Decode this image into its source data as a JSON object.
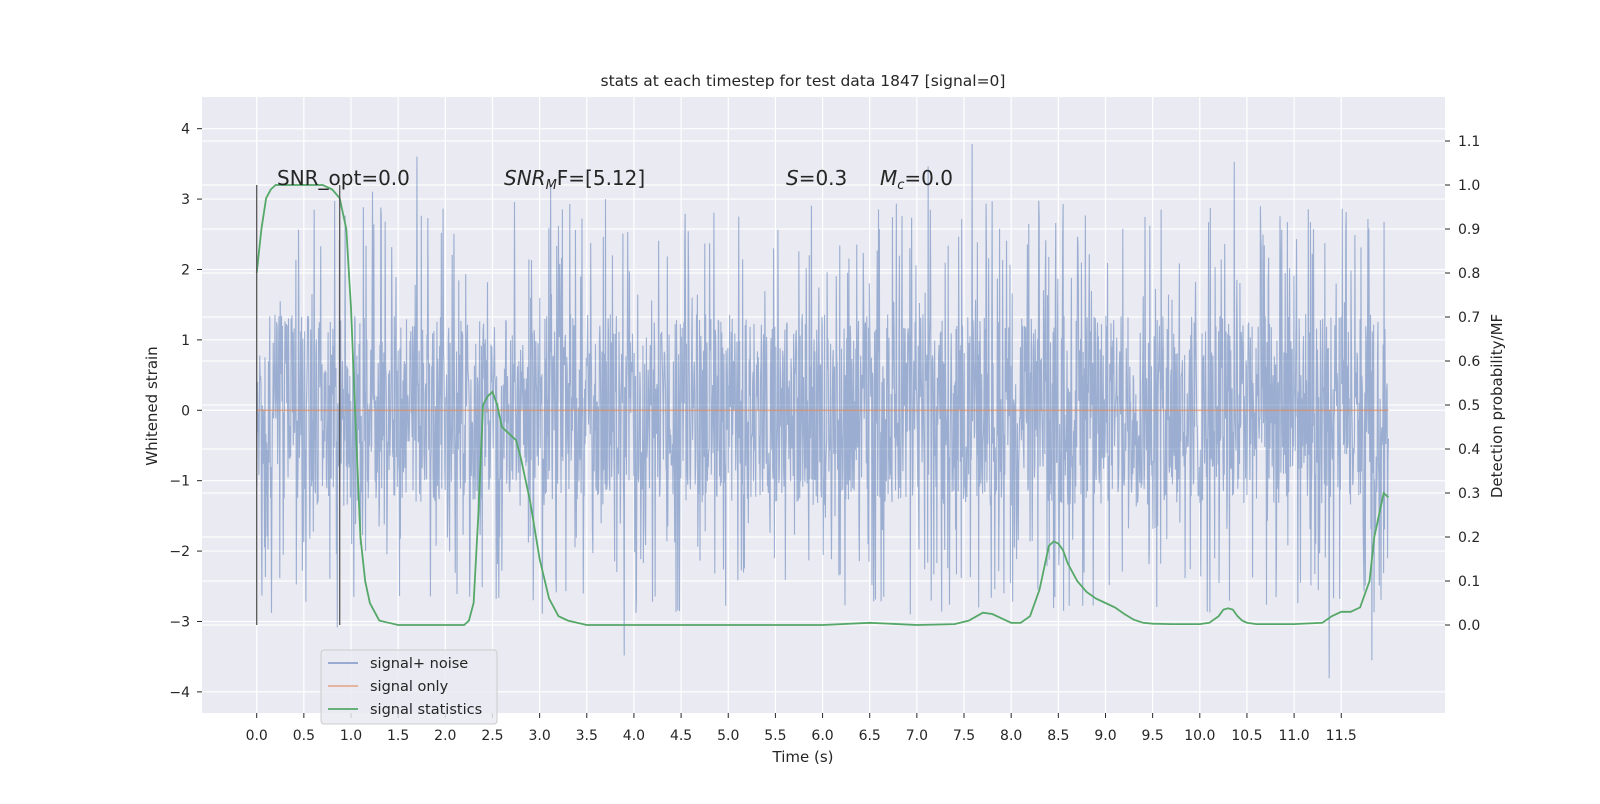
{
  "chart_data": {
    "type": "line",
    "title": "stats at each timestep for test data 1847 [signal=0]",
    "xlabel": "Time (s)",
    "ylabel_left": "Whitened strain",
    "ylabel_right": "Detection probability/MF",
    "xlim": [
      -0.58,
      12.6
    ],
    "ylim_left": [
      -4.3,
      4.45
    ],
    "ylim_right": [
      -0.2,
      1.2
    ],
    "x_ticks": [
      0.0,
      0.5,
      1.0,
      1.5,
      2.0,
      2.5,
      3.0,
      3.5,
      4.0,
      4.5,
      5.0,
      5.5,
      6.0,
      6.5,
      7.0,
      7.5,
      8.0,
      8.5,
      9.0,
      9.5,
      10.0,
      10.5,
      11.0,
      11.5
    ],
    "x_tick_labels": [
      "0.0",
      "0.5",
      "1.0",
      "1.5",
      "2.0",
      "2.5",
      "3.0",
      "3.5",
      "4.0",
      "4.5",
      "5.0",
      "5.5",
      "6.0",
      "6.5",
      "7.0",
      "7.5",
      "8.0",
      "8.5",
      "9.0",
      "9.5",
      "10.0",
      "10.5",
      "11.0",
      "11.5"
    ],
    "y_left_ticks": [
      -4,
      -3,
      -2,
      -1,
      0,
      1,
      2,
      3,
      4
    ],
    "y_left_tick_labels": [
      "−4",
      "−3",
      "−2",
      "−1",
      "0",
      "1",
      "2",
      "3",
      "4"
    ],
    "y_right_ticks": [
      0.0,
      0.1,
      0.2,
      0.3,
      0.4,
      0.5,
      0.6,
      0.7,
      0.8,
      0.9,
      1.0,
      1.1
    ],
    "y_right_tick_labels": [
      "0.0",
      "0.1",
      "0.2",
      "0.3",
      "0.4",
      "0.5",
      "0.6",
      "0.7",
      "0.8",
      "0.9",
      "1.0",
      "1.1"
    ],
    "grid": true,
    "legend_placement": "lower-left",
    "annotations": {
      "snr_opt": "SNR_opt=0.0",
      "snr_mf_base": "SNR",
      "snr_mf_sub": "M",
      "snr_mf_tail": "F=[5.12]",
      "s_name": "S",
      "s_value": "=0.3",
      "mc_base": "M",
      "mc_sub": "c",
      "mc_value": "=0.0"
    },
    "markers": {
      "x": [
        0.0,
        0.88
      ],
      "y_range": [
        -3.05,
        3.2
      ]
    },
    "series": [
      {
        "name": "signal+ noise",
        "axis": "left",
        "color": "#4c72b0",
        "kind": "noise",
        "x_range": [
          0.0,
          12.0
        ],
        "core_amplitude": 1.3,
        "max_value": 4.1,
        "min_value": -3.9
      },
      {
        "name": "signal only",
        "axis": "left",
        "color": "#dd8452",
        "kind": "flat",
        "x_range": [
          0.0,
          12.0
        ],
        "value": 0.0
      },
      {
        "name": "signal statistics",
        "axis": "right",
        "color": "#55a868",
        "kind": "line",
        "x": [
          0.0,
          0.05,
          0.1,
          0.15,
          0.2,
          0.3,
          0.5,
          0.7,
          0.8,
          0.88,
          0.95,
          1.0,
          1.05,
          1.1,
          1.15,
          1.2,
          1.3,
          1.5,
          1.8,
          2.0,
          2.1,
          2.2,
          2.25,
          2.3,
          2.35,
          2.4,
          2.45,
          2.5,
          2.55,
          2.6,
          2.7,
          2.75,
          2.8,
          2.9,
          3.0,
          3.1,
          3.2,
          3.3,
          3.5,
          4.0,
          4.5,
          5.0,
          5.5,
          6.0,
          6.5,
          7.0,
          7.4,
          7.55,
          7.7,
          7.8,
          7.9,
          8.0,
          8.1,
          8.2,
          8.3,
          8.4,
          8.45,
          8.5,
          8.55,
          8.6,
          8.7,
          8.8,
          8.9,
          9.0,
          9.1,
          9.2,
          9.3,
          9.4,
          9.5,
          9.7,
          10.0,
          10.1,
          10.2,
          10.25,
          10.3,
          10.35,
          10.4,
          10.45,
          10.5,
          10.6,
          11.0,
          11.3,
          11.4,
          11.5,
          11.6,
          11.7,
          11.8,
          11.85,
          11.9,
          11.95,
          12.0
        ],
        "y": [
          0.8,
          0.9,
          0.97,
          0.99,
          1.0,
          1.0,
          1.0,
          1.0,
          0.99,
          0.97,
          0.9,
          0.72,
          0.45,
          0.2,
          0.1,
          0.05,
          0.01,
          0.0,
          0.0,
          0.0,
          0.0,
          0.0,
          0.01,
          0.05,
          0.25,
          0.5,
          0.52,
          0.53,
          0.5,
          0.45,
          0.43,
          0.42,
          0.38,
          0.28,
          0.15,
          0.06,
          0.02,
          0.01,
          0.0,
          0.0,
          0.0,
          0.0,
          0.0,
          0.0,
          0.005,
          0.0,
          0.002,
          0.01,
          0.028,
          0.025,
          0.015,
          0.005,
          0.005,
          0.02,
          0.08,
          0.18,
          0.19,
          0.185,
          0.17,
          0.14,
          0.1,
          0.075,
          0.06,
          0.05,
          0.04,
          0.025,
          0.012,
          0.005,
          0.003,
          0.002,
          0.002,
          0.005,
          0.02,
          0.035,
          0.038,
          0.035,
          0.02,
          0.01,
          0.005,
          0.002,
          0.002,
          0.005,
          0.02,
          0.03,
          0.03,
          0.04,
          0.1,
          0.2,
          0.25,
          0.3,
          0.29
        ]
      }
    ]
  }
}
